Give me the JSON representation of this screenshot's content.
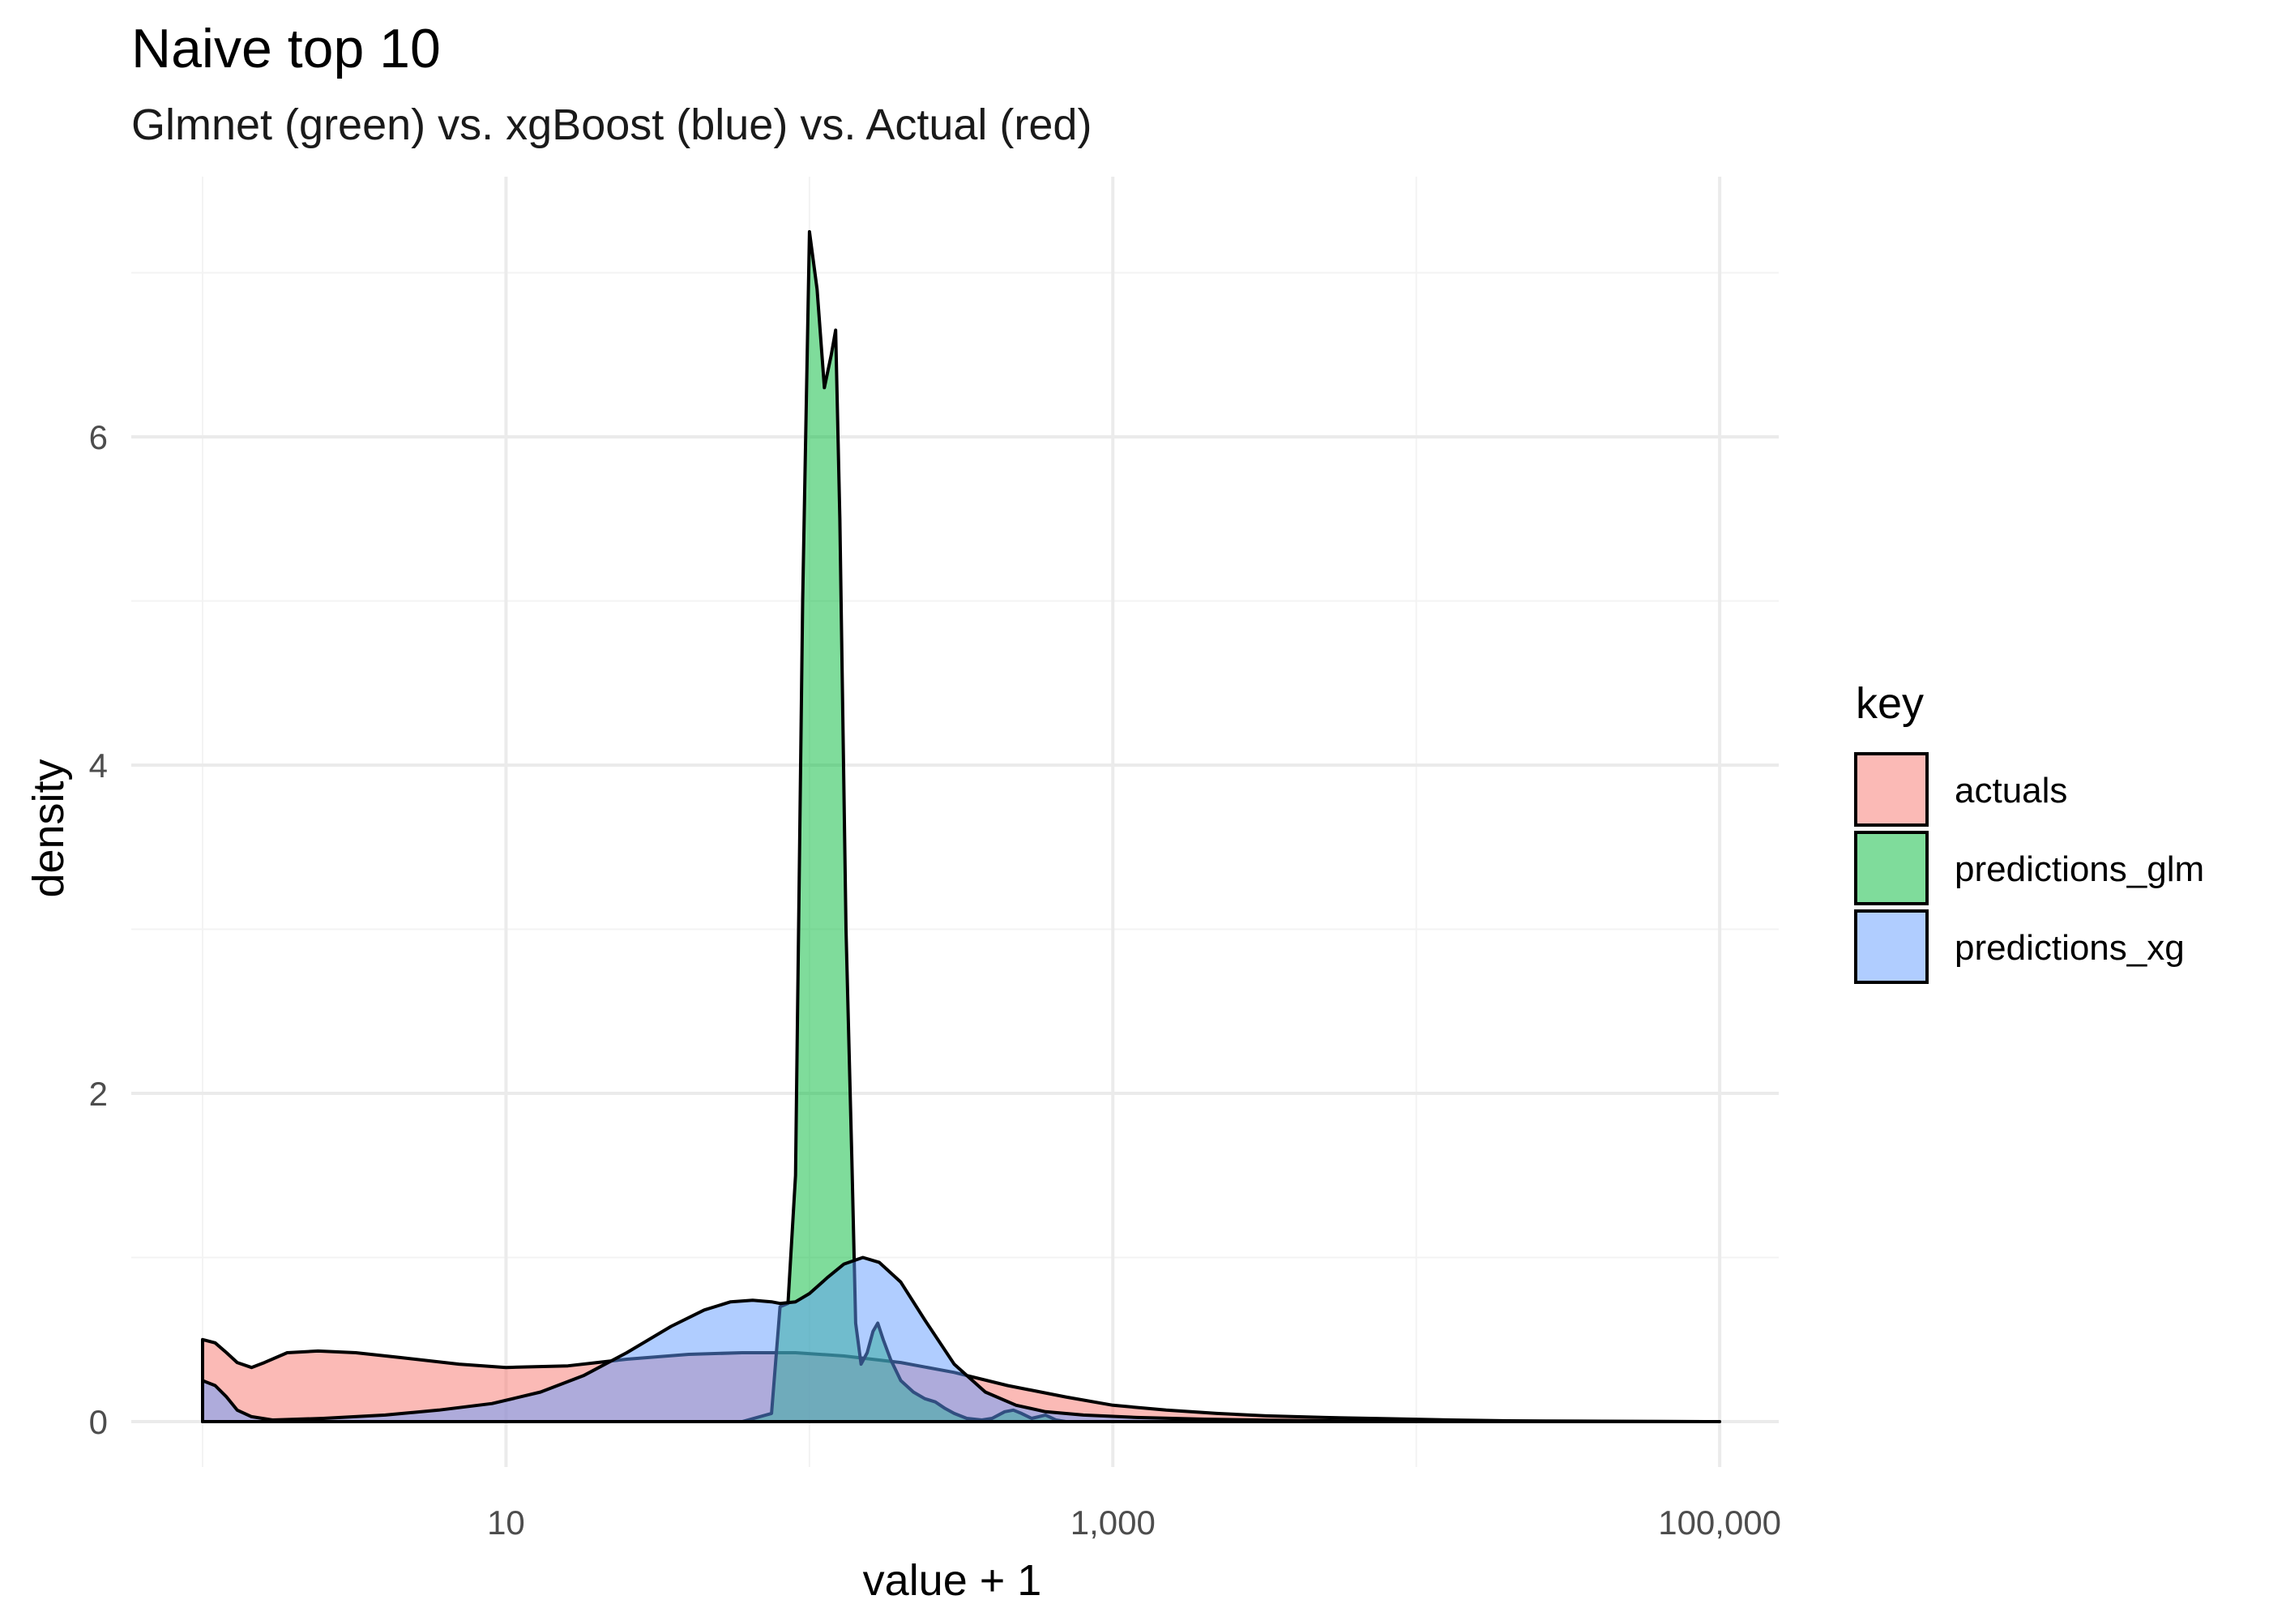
{
  "chart_data": {
    "type": "area",
    "title": "Naive top 10",
    "subtitle": "Glmnet (green) vs. xgBoost (blue) vs. Actual (red)",
    "xlabel": "value + 1",
    "ylabel": "density",
    "x_scale": "log10",
    "xlim": [
      1,
      100000
    ],
    "ylim": [
      0,
      7.2
    ],
    "x_ticks": [
      {
        "value": 10,
        "label": "10"
      },
      {
        "value": 1000,
        "label": "1,000"
      },
      {
        "value": 100000,
        "label": "100,000"
      }
    ],
    "y_ticks": [
      {
        "value": 0,
        "label": "0"
      },
      {
        "value": 2,
        "label": "2"
      },
      {
        "value": 4,
        "label": "4"
      },
      {
        "value": 6,
        "label": "6"
      }
    ],
    "grid": true,
    "legend": {
      "title": "key",
      "position": "right"
    },
    "series": [
      {
        "name": "actuals",
        "color": "#f8766d",
        "points": [
          [
            1,
            0
          ],
          [
            1,
            0.5
          ],
          [
            1.1,
            0.48
          ],
          [
            1.2,
            0.42
          ],
          [
            1.3,
            0.36
          ],
          [
            1.45,
            0.33
          ],
          [
            1.6,
            0.36
          ],
          [
            1.9,
            0.42
          ],
          [
            2.4,
            0.43
          ],
          [
            3.2,
            0.42
          ],
          [
            4.5,
            0.39
          ],
          [
            7,
            0.35
          ],
          [
            10,
            0.33
          ],
          [
            16,
            0.34
          ],
          [
            25,
            0.38
          ],
          [
            40,
            0.41
          ],
          [
            60,
            0.42
          ],
          [
            90,
            0.42
          ],
          [
            130,
            0.4
          ],
          [
            200,
            0.36
          ],
          [
            300,
            0.3
          ],
          [
            450,
            0.22
          ],
          [
            700,
            0.15
          ],
          [
            1000,
            0.1
          ],
          [
            1500,
            0.07
          ],
          [
            2200,
            0.05
          ],
          [
            3200,
            0.035
          ],
          [
            5000,
            0.025
          ],
          [
            8000,
            0.018
          ],
          [
            13000,
            0.01
          ],
          [
            20000,
            0.005
          ],
          [
            35000,
            0.003
          ],
          [
            60000,
            0.001
          ],
          [
            90000,
            0
          ]
        ]
      },
      {
        "name": "predictions_glm",
        "color": "#00ba38",
        "points": [
          [
            1,
            0
          ],
          [
            60,
            0
          ],
          [
            75,
            0.05
          ],
          [
            80,
            0.7
          ],
          [
            85,
            0.72
          ],
          [
            90,
            1.5
          ],
          [
            95,
            5.0
          ],
          [
            100,
            7.25
          ],
          [
            106,
            6.9
          ],
          [
            112,
            6.3
          ],
          [
            118,
            6.5
          ],
          [
            122,
            6.65
          ],
          [
            126,
            5.5
          ],
          [
            132,
            3.0
          ],
          [
            138,
            1.6
          ],
          [
            142,
            0.6
          ],
          [
            148,
            0.35
          ],
          [
            155,
            0.42
          ],
          [
            162,
            0.55
          ],
          [
            168,
            0.6
          ],
          [
            175,
            0.5
          ],
          [
            185,
            0.38
          ],
          [
            200,
            0.25
          ],
          [
            220,
            0.18
          ],
          [
            240,
            0.14
          ],
          [
            260,
            0.12
          ],
          [
            280,
            0.08
          ],
          [
            300,
            0.05
          ],
          [
            330,
            0.02
          ],
          [
            370,
            0.01
          ],
          [
            400,
            0.02
          ],
          [
            440,
            0.06
          ],
          [
            470,
            0.07
          ],
          [
            500,
            0.05
          ],
          [
            540,
            0.02
          ],
          [
            600,
            0.04
          ],
          [
            650,
            0.01
          ],
          [
            700,
            0
          ],
          [
            100000,
            0
          ]
        ]
      },
      {
        "name": "predictions_xg",
        "color": "#619cff",
        "points": [
          [
            1,
            0
          ],
          [
            1,
            0.25
          ],
          [
            1.1,
            0.22
          ],
          [
            1.2,
            0.15
          ],
          [
            1.3,
            0.07
          ],
          [
            1.45,
            0.03
          ],
          [
            1.7,
            0.01
          ],
          [
            2.5,
            0.02
          ],
          [
            4,
            0.04
          ],
          [
            6,
            0.07
          ],
          [
            9,
            0.11
          ],
          [
            13,
            0.18
          ],
          [
            18,
            0.28
          ],
          [
            25,
            0.42
          ],
          [
            35,
            0.58
          ],
          [
            45,
            0.68
          ],
          [
            55,
            0.73
          ],
          [
            65,
            0.74
          ],
          [
            75,
            0.73
          ],
          [
            80,
            0.72
          ],
          [
            90,
            0.73
          ],
          [
            100,
            0.78
          ],
          [
            115,
            0.88
          ],
          [
            130,
            0.96
          ],
          [
            150,
            1.0
          ],
          [
            170,
            0.97
          ],
          [
            200,
            0.85
          ],
          [
            240,
            0.62
          ],
          [
            300,
            0.35
          ],
          [
            380,
            0.18
          ],
          [
            480,
            0.1
          ],
          [
            600,
            0.06
          ],
          [
            800,
            0.04
          ],
          [
            1200,
            0.025
          ],
          [
            2000,
            0.015
          ],
          [
            3500,
            0.008
          ],
          [
            6000,
            0.004
          ],
          [
            12000,
            0.002
          ],
          [
            30000,
            0.001
          ],
          [
            90000,
            0
          ]
        ]
      }
    ]
  }
}
